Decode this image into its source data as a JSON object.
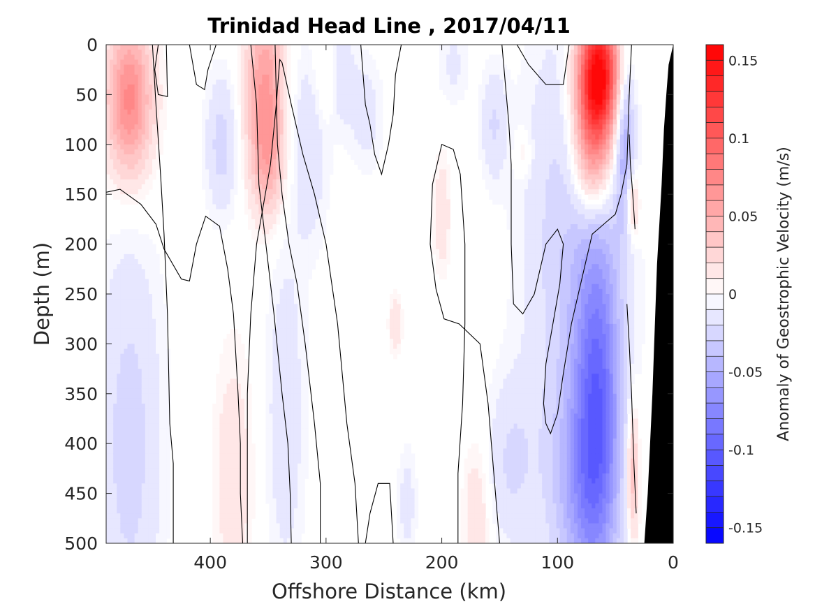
{
  "chart_data": {
    "type": "heatmap",
    "title": "Trinidad Head Line , 2017/04/11",
    "xlabel": "Offshore Distance (km)",
    "ylabel": "Depth (m)",
    "colorbar_label": "Anomaly of Geostrophic Velocity (m/s)",
    "xlim": [
      0,
      490
    ],
    "x_reversed": true,
    "ylim": [
      0,
      500
    ],
    "y_reversed": true,
    "x_ticks": [
      400,
      300,
      200,
      100,
      0
    ],
    "y_ticks": [
      0,
      50,
      100,
      150,
      200,
      250,
      300,
      350,
      400,
      450,
      500
    ],
    "colorbar_limits": [
      -0.16,
      0.16
    ],
    "colorbar_ticks": [
      0.15,
      0.1,
      0.05,
      0,
      -0.05,
      -0.1,
      -0.15
    ],
    "colormap": {
      "negative": "#0000ff",
      "zero": "#ffffff",
      "positive": "#ff0000"
    },
    "zero_contour_color": "#000000",
    "bathymetry_color": "#000000",
    "features": [
      {
        "x": 470,
        "depth": 55,
        "sx": 14,
        "sd": 55,
        "value": 0.075
      },
      {
        "x": 353,
        "depth": 45,
        "sx": 12,
        "sd": 65,
        "value": 0.06
      },
      {
        "x": 350,
        "depth": 120,
        "sx": 10,
        "sd": 40,
        "value": 0.03
      },
      {
        "x": 390,
        "depth": 100,
        "sx": 10,
        "sd": 50,
        "value": -0.025
      },
      {
        "x": 315,
        "depth": 100,
        "sx": 12,
        "sd": 70,
        "value": -0.02
      },
      {
        "x": 300,
        "depth": 30,
        "sx": 8,
        "sd": 40,
        "value": 0.02
      },
      {
        "x": 265,
        "depth": 70,
        "sx": 10,
        "sd": 40,
        "value": -0.015
      },
      {
        "x": 470,
        "depth": 400,
        "sx": 20,
        "sd": 150,
        "value": -0.025
      },
      {
        "x": 335,
        "depth": 370,
        "sx": 12,
        "sd": 120,
        "value": -0.018
      },
      {
        "x": 290,
        "depth": 30,
        "sx": 10,
        "sd": 40,
        "value": -0.02
      },
      {
        "x": 380,
        "depth": 430,
        "sx": 12,
        "sd": 90,
        "value": 0.018
      },
      {
        "x": 85,
        "depth": 200,
        "sx": 30,
        "sd": 160,
        "value": -0.03
      },
      {
        "x": 65,
        "depth": 30,
        "sx": 13,
        "sd": 45,
        "value": 0.17
      },
      {
        "x": 70,
        "depth": 110,
        "sx": 12,
        "sd": 45,
        "value": 0.07
      },
      {
        "x": 65,
        "depth": 360,
        "sx": 14,
        "sd": 120,
        "value": -0.075
      },
      {
        "x": 80,
        "depth": 450,
        "sx": 20,
        "sd": 80,
        "value": -0.04
      },
      {
        "x": 42,
        "depth": 90,
        "sx": 6,
        "sd": 60,
        "value": -0.05
      },
      {
        "x": 35,
        "depth": 430,
        "sx": 4,
        "sd": 50,
        "value": 0.045
      },
      {
        "x": 35,
        "depth": 160,
        "sx": 4,
        "sd": 25,
        "value": 0.04
      },
      {
        "x": 200,
        "depth": 170,
        "sx": 5,
        "sd": 40,
        "value": 0.02
      },
      {
        "x": 170,
        "depth": 470,
        "sx": 8,
        "sd": 50,
        "value": 0.02
      },
      {
        "x": 240,
        "depth": 280,
        "sx": 4,
        "sd": 20,
        "value": 0.02
      },
      {
        "x": 155,
        "depth": 80,
        "sx": 8,
        "sd": 40,
        "value": -0.02
      },
      {
        "x": 190,
        "depth": 20,
        "sx": 10,
        "sd": 30,
        "value": -0.012
      },
      {
        "x": 140,
        "depth": 420,
        "sx": 15,
        "sd": 60,
        "value": -0.02
      },
      {
        "x": 130,
        "depth": 110,
        "sx": 5,
        "sd": 15,
        "value": 0.015
      },
      {
        "x": 230,
        "depth": 460,
        "sx": 6,
        "sd": 40,
        "value": -0.015
      }
    ],
    "zero_contours": [
      [
        [
          445,
          0
        ],
        [
          448,
          25
        ],
        [
          445,
          50
        ],
        [
          437,
          52
        ],
        [
          438,
          0
        ]
      ],
      [
        [
          490,
          148
        ],
        [
          478,
          145
        ],
        [
          460,
          160
        ],
        [
          447,
          180
        ],
        [
          440,
          205
        ],
        [
          425,
          235
        ],
        [
          418,
          237
        ],
        [
          412,
          200
        ],
        [
          404,
          172
        ],
        [
          392,
          182
        ],
        [
          385,
          225
        ],
        [
          380,
          270
        ],
        [
          376,
          350
        ],
        [
          374,
          400
        ],
        [
          374,
          450
        ],
        [
          372,
          500
        ]
      ],
      [
        [
          432,
          500
        ],
        [
          432,
          420
        ],
        [
          435,
          380
        ],
        [
          437,
          270
        ],
        [
          440,
          190
        ],
        [
          443,
          130
        ],
        [
          447,
          60
        ],
        [
          450,
          0
        ]
      ],
      [
        [
          395,
          0
        ],
        [
          402,
          25
        ],
        [
          405,
          45
        ],
        [
          412,
          40
        ],
        [
          418,
          0
        ]
      ],
      [
        [
          365,
          0
        ],
        [
          360,
          60
        ],
        [
          358,
          140
        ],
        [
          352,
          200
        ],
        [
          345,
          270
        ],
        [
          338,
          350
        ],
        [
          333,
          400
        ],
        [
          331,
          450
        ],
        [
          330,
          500
        ]
      ],
      [
        [
          272,
          500
        ],
        [
          275,
          440
        ],
        [
          282,
          380
        ],
        [
          290,
          280
        ],
        [
          295,
          240
        ],
        [
          300,
          200
        ],
        [
          310,
          150
        ],
        [
          320,
          110
        ],
        [
          330,
          60
        ],
        [
          338,
          18
        ],
        [
          340,
          15
        ],
        [
          343,
          60
        ],
        [
          348,
          120
        ],
        [
          360,
          200
        ],
        [
          365,
          270
        ],
        [
          368,
          350
        ],
        [
          368,
          500
        ]
      ],
      [
        [
          305,
          500
        ],
        [
          305,
          440
        ],
        [
          310,
          380
        ],
        [
          318,
          300
        ],
        [
          325,
          240
        ],
        [
          332,
          200
        ],
        [
          338,
          150
        ],
        [
          342,
          100
        ],
        [
          344,
          0
        ]
      ],
      [
        [
          150,
          500
        ],
        [
          155,
          430
        ],
        [
          160,
          360
        ],
        [
          167,
          300
        ],
        [
          185,
          280
        ],
        [
          198,
          275
        ],
        [
          205,
          245
        ],
        [
          210,
          200
        ],
        [
          208,
          140
        ],
        [
          200,
          100
        ],
        [
          190,
          105
        ],
        [
          184,
          130
        ],
        [
          180,
          200
        ],
        [
          180,
          280
        ],
        [
          182,
          360
        ],
        [
          186,
          430
        ],
        [
          186,
          500
        ]
      ],
      [
        [
          242,
          500
        ],
        [
          245,
          440
        ],
        [
          255,
          440
        ],
        [
          262,
          470
        ],
        [
          266,
          500
        ]
      ],
      [
        [
          235,
          0
        ],
        [
          240,
          30
        ],
        [
          242,
          70
        ],
        [
          246,
          100
        ],
        [
          250,
          120
        ],
        [
          252,
          130
        ],
        [
          258,
          110
        ],
        [
          262,
          80
        ],
        [
          266,
          60
        ],
        [
          270,
          0
        ]
      ],
      [
        [
          148,
          0
        ],
        [
          145,
          40
        ],
        [
          142,
          80
        ],
        [
          140,
          120
        ],
        [
          140,
          200
        ],
        [
          138,
          260
        ],
        [
          130,
          270
        ],
        [
          120,
          250
        ],
        [
          110,
          200
        ],
        [
          100,
          185
        ],
        [
          95,
          200
        ],
        [
          98,
          240
        ],
        [
          104,
          280
        ],
        [
          110,
          320
        ],
        [
          112,
          360
        ],
        [
          110,
          380
        ],
        [
          106,
          390
        ],
        [
          100,
          370
        ],
        [
          95,
          330
        ],
        [
          88,
          280
        ],
        [
          80,
          240
        ],
        [
          70,
          190
        ],
        [
          60,
          180
        ],
        [
          50,
          170
        ],
        [
          45,
          150
        ],
        [
          40,
          120
        ],
        [
          38,
          50
        ],
        [
          36,
          0
        ]
      ],
      [
        [
          90,
          0
        ],
        [
          95,
          40
        ],
        [
          110,
          40
        ],
        [
          125,
          20
        ],
        [
          135,
          0
        ]
      ],
      [
        [
          32,
          470
        ],
        [
          34,
          420
        ],
        [
          36,
          350
        ],
        [
          38,
          300
        ],
        [
          40,
          260
        ]
      ],
      [
        [
          33,
          185
        ],
        [
          35,
          150
        ],
        [
          37,
          120
        ],
        [
          38,
          90
        ]
      ]
    ],
    "bathymetry": [
      [
        0,
        0
      ],
      [
        4,
        20
      ],
      [
        6,
        50
      ],
      [
        8,
        85
      ],
      [
        10,
        140
      ],
      [
        14,
        220
      ],
      [
        18,
        350
      ],
      [
        22,
        450
      ],
      [
        25,
        500
      ],
      [
        0,
        500
      ]
    ]
  }
}
